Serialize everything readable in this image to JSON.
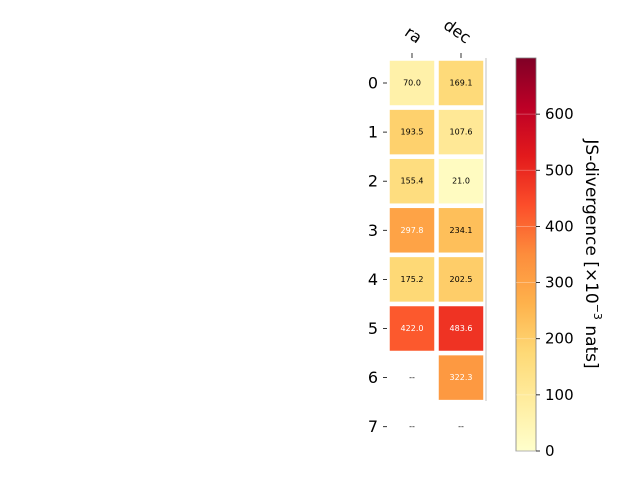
{
  "chart_data": {
    "type": "heatmap",
    "columns": [
      "ra",
      "dec"
    ],
    "rows": [
      "0",
      "1",
      "2",
      "3",
      "4",
      "5",
      "6",
      "7"
    ],
    "values": [
      [
        70.0,
        169.1
      ],
      [
        193.5,
        107.6
      ],
      [
        155.4,
        21.0
      ],
      [
        297.8,
        234.1
      ],
      [
        175.2,
        202.5
      ],
      [
        422.0,
        483.6
      ],
      [
        null,
        322.3
      ],
      [
        null,
        null
      ]
    ],
    "cell_labels": [
      [
        "70.0",
        "169.1"
      ],
      [
        "193.5",
        "107.6"
      ],
      [
        "155.4",
        "21.0"
      ],
      [
        "297.8",
        "234.1"
      ],
      [
        "175.2",
        "202.5"
      ],
      [
        "422.0",
        "483.6"
      ],
      [
        "--",
        "322.3"
      ],
      [
        "--",
        "--"
      ]
    ],
    "colormap": "YlOrRd",
    "vmin": 0,
    "vmax": 700,
    "colorbar": {
      "ticks": [
        "0",
        "100",
        "200",
        "300",
        "400",
        "500",
        "600"
      ],
      "label_prefix": "JS-divergence [×10",
      "label_exponent": "−3",
      "label_suffix": " nats]"
    }
  }
}
